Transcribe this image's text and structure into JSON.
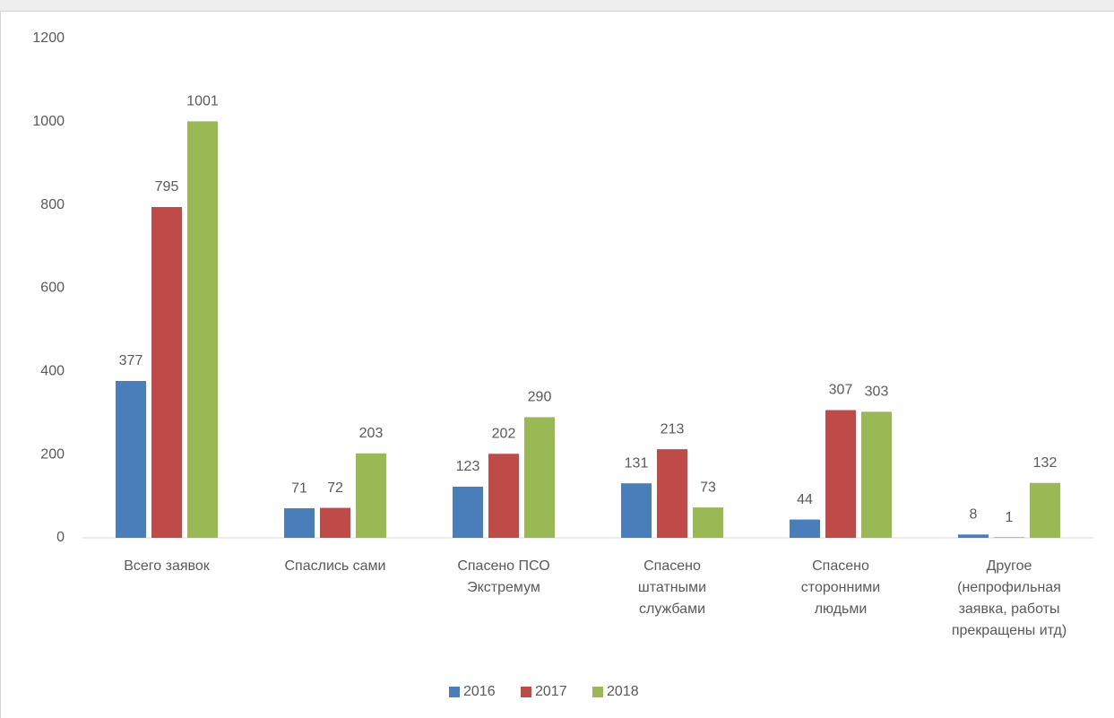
{
  "chart_data": {
    "type": "bar",
    "categories": [
      "Всего заявок",
      "Спаслись сами",
      "Спасено ПСО Экстремум",
      "Спасено штатными службами",
      "Спасено сторонними людьми",
      "Другое (непрофильная заявка, работы прекращены итд)"
    ],
    "series": [
      {
        "name": "2016",
        "color": "#4a7ebb",
        "values": [
          377,
          71,
          123,
          131,
          44,
          8
        ]
      },
      {
        "name": "2017",
        "color": "#be4b48",
        "values": [
          795,
          72,
          202,
          213,
          307,
          1
        ]
      },
      {
        "name": "2018",
        "color": "#98b954",
        "values": [
          1001,
          203,
          290,
          73,
          303,
          132
        ]
      }
    ],
    "ylim": [
      0,
      1200
    ],
    "yticks": [
      0,
      200,
      400,
      600,
      800,
      1000,
      1200
    ],
    "grid": false,
    "legend": "bottom"
  }
}
